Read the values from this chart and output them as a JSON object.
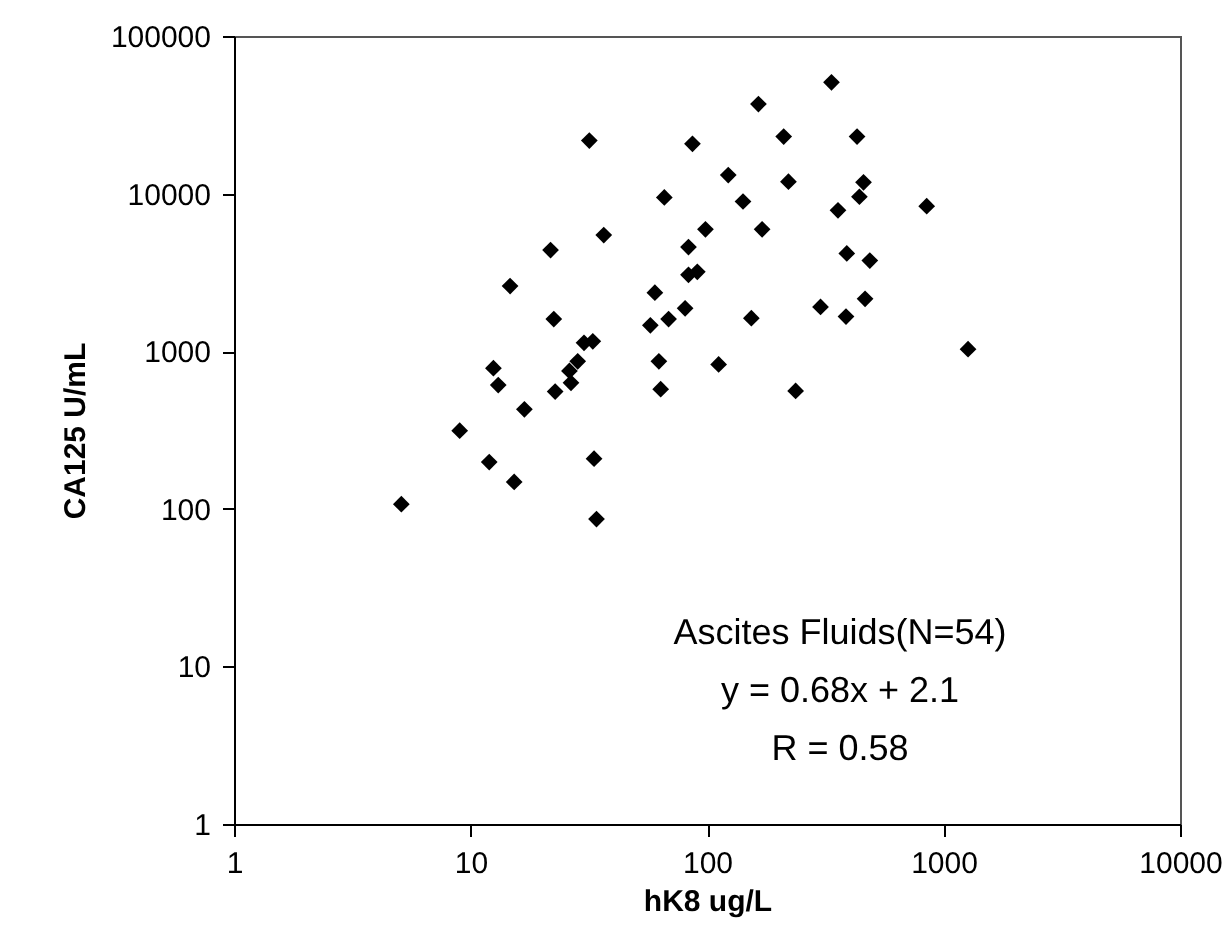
{
  "chart_data": {
    "type": "scatter",
    "xlabel": "hK8 ug/L",
    "ylabel": "CA125 U/mL",
    "annotations": [
      "Ascites Fluids(N=54)",
      "y = 0.68x + 2.1",
      "R = 0.58"
    ],
    "log": "xy",
    "grid": false,
    "marker": "diamond",
    "xlim": [
      1,
      10000
    ],
    "xticks": [
      1,
      10,
      100,
      1000,
      10000
    ],
    "ylim": [
      1,
      100000
    ],
    "yticks": [
      1,
      10,
      100,
      1000,
      10000,
      100000
    ],
    "series": [
      {
        "color": "#000000",
        "x": [
          5.1,
          9.0,
          12,
          12.5,
          13.1,
          15.3,
          14.7,
          16.9,
          21.8,
          22.5,
          22.8,
          26.2,
          26.6,
          28.4,
          30.2,
          32.9,
          31.8,
          33.3,
          34.1,
          36.6,
          57.6,
          60.2,
          62.6,
          63.7,
          66,
          68.8,
          80.8,
          83.5,
          83.5,
          91,
          86.8,
          98.5,
          112,
          123,
          142,
          154,
          165,
          171,
          211,
          221,
          237,
          302,
          336,
          358,
          387,
          390,
          431,
          441,
          459,
          466,
          488,
          849,
          1270
        ],
        "values": [
          107,
          313,
          198,
          780,
          610,
          148,
          2590,
          428,
          4380,
          1600,
          554,
          750,
          630,
          863,
          1130,
          1156,
          21700,
          208,
          86,
          5460,
          1460,
          2350,
          863,
          574,
          9460,
          1600,
          1870,
          4580,
          3050,
          3190,
          20700,
          5930,
          824,
          13100,
          8910,
          1620,
          37000,
          5930,
          23000,
          11900,
          560,
          1910,
          50800,
          7830,
          1660,
          4170,
          23000,
          9550,
          11800,
          2150,
          3760,
          8320,
          1030
        ]
      }
    ]
  }
}
